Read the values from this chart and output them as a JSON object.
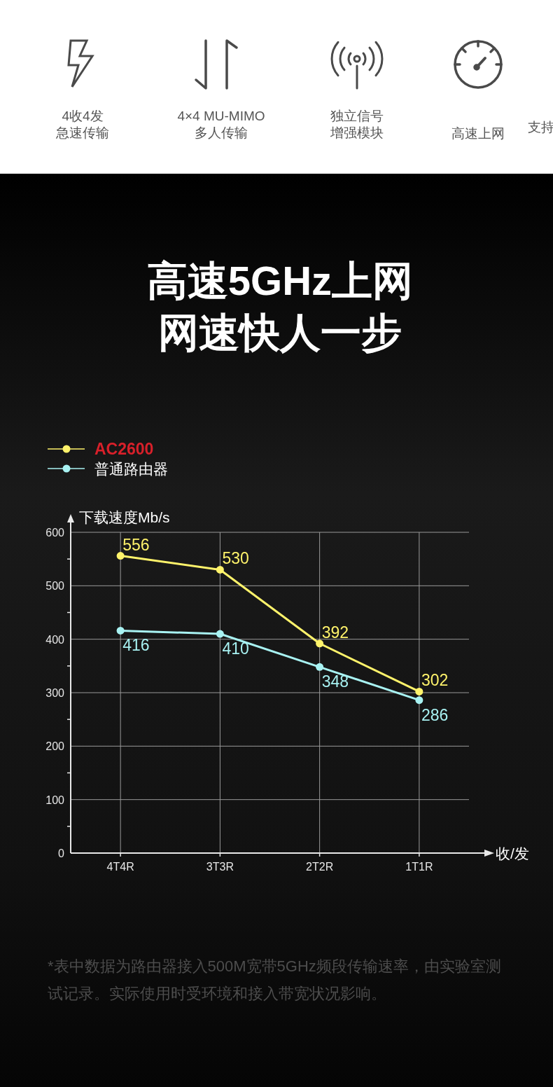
{
  "chart_data": [
    {
      "type": "other",
      "annotations": [
        "4收4发",
        "急速传输",
        "4×4 MU-MIMO",
        "多人传输",
        "独立信号",
        "增强模块",
        "高速上网",
        "支持"
      ]
    },
    {
      "type": "line",
      "title": "高速5GHz上网",
      "subtitle": "网速快人一步",
      "ylabel": "下载速度Mb/s",
      "xlabel": "收/发",
      "categories": [
        "4T4R",
        "3T3R",
        "2T2R",
        "1T1R"
      ],
      "series": [
        {
          "name": "AC2600",
          "color": "#fff36b",
          "values": [
            556,
            530,
            392,
            302
          ]
        },
        {
          "name": "普通路由器",
          "color": "#a8f2f2",
          "values": [
            416,
            410,
            348,
            286
          ]
        }
      ],
      "ylim": [
        0,
        600
      ],
      "yticks": [
        0,
        100,
        200,
        300,
        400,
        500,
        600
      ],
      "grid": true,
      "legend": "top left",
      "marker": "circle",
      "line_style": "solid",
      "data_labels": true,
      "annotations": [
        "*表中数据为路由器接入500M宽带5GHz频段传输速率，由实验室测试记录。实际使用时受环境和接入带宽状况影响。"
      ]
    }
  ]
}
